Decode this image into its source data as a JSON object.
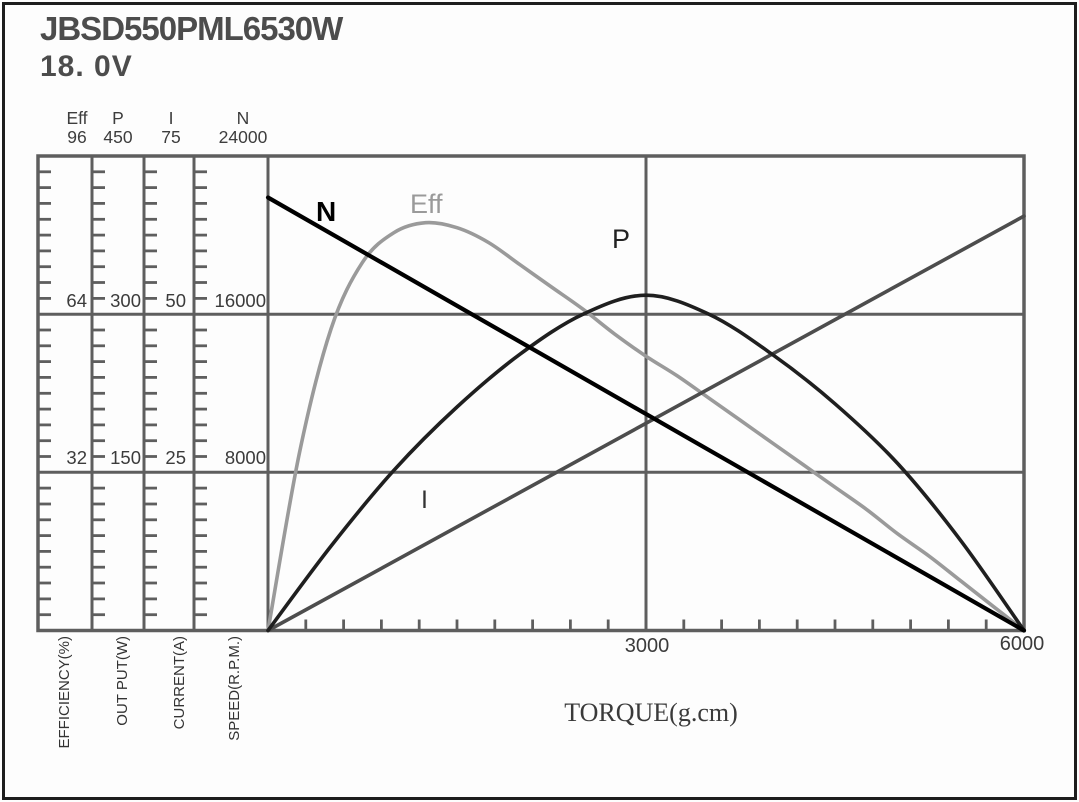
{
  "title": "JBSD550PML6530W",
  "voltage": "18. 0V",
  "scales": [
    {
      "symbol": "Eff",
      "max_label": "96",
      "mid_label": "64",
      "low_label": "32",
      "unit": "EFFICIENCY(%)"
    },
    {
      "symbol": "P",
      "max_label": "450",
      "mid_label": "300",
      "low_label": "150",
      "unit": "OUT PUT(W)"
    },
    {
      "symbol": "I",
      "max_label": "75",
      "mid_label": "50",
      "low_label": "25",
      "unit": "CURRENT(A)"
    },
    {
      "symbol": "N",
      "max_label": "24000",
      "mid_label": "16000",
      "low_label": "8000",
      "unit": "SPEED(R.P.M.)"
    }
  ],
  "x_axis": {
    "label": "TORQUE(g.cm)",
    "mid_tick": "3000",
    "end_tick": "6000"
  },
  "curve_labels": {
    "n": "N",
    "eff": "Eff",
    "p": "P",
    "i": "I"
  },
  "colors": {
    "grid": "#5e5e5e",
    "n_curve": "#000000",
    "eff_curve": "#9a9a9a",
    "p_curve": "#1f1f1f",
    "i_curve": "#4d4d4d"
  },
  "chart_data": {
    "type": "line",
    "title": "JBSD550PML6530W",
    "subtitle": "18.0V",
    "xlabel": "TORQUE(g.cm)",
    "xlim": [
      0,
      6000
    ],
    "x_gridline": 3000,
    "x_minor_tick_step": 300,
    "grid": true,
    "y_axes": [
      {
        "id": "eff",
        "label": "EFFICIENCY(%)",
        "lim": [
          0,
          96
        ],
        "major_ticks": [
          32,
          64,
          96
        ],
        "minor_per_major": 10
      },
      {
        "id": "p",
        "label": "OUT PUT(W)",
        "lim": [
          0,
          450
        ],
        "major_ticks": [
          150,
          300,
          450
        ],
        "minor_per_major": 10
      },
      {
        "id": "i",
        "label": "CURRENT(A)",
        "lim": [
          0,
          75
        ],
        "major_ticks": [
          25,
          50,
          75
        ],
        "minor_per_major": 10
      },
      {
        "id": "n",
        "label": "SPEED(R.P.M.)",
        "lim": [
          0,
          24000
        ],
        "major_ticks": [
          8000,
          16000,
          24000
        ],
        "minor_per_major": 10
      }
    ],
    "series": [
      {
        "name": "N",
        "axis": "n",
        "color": "#000000",
        "stroke_width": 4.2,
        "points": [
          [
            0,
            21900
          ],
          [
            6000,
            0
          ]
        ]
      },
      {
        "name": "I",
        "axis": "i",
        "color": "#4d4d4d",
        "stroke_width": 3.6,
        "points": [
          [
            0,
            0
          ],
          [
            6000,
            65.5
          ]
        ]
      },
      {
        "name": "P",
        "axis": "p",
        "color": "#1f1f1f",
        "stroke_width": 3.6,
        "points": [
          [
            0,
            0
          ],
          [
            500,
            80
          ],
          [
            1000,
            152
          ],
          [
            1500,
            212
          ],
          [
            2000,
            262
          ],
          [
            2500,
            300
          ],
          [
            3000,
            318
          ],
          [
            3500,
            300
          ],
          [
            4000,
            262
          ],
          [
            4500,
            215
          ],
          [
            5000,
            158
          ],
          [
            5500,
            85
          ],
          [
            6000,
            0
          ]
        ]
      },
      {
        "name": "Eff",
        "axis": "eff",
        "color": "#9a9a9a",
        "stroke_width": 3.6,
        "points": [
          [
            0,
            0
          ],
          [
            250,
            36
          ],
          [
            500,
            61
          ],
          [
            750,
            74.5
          ],
          [
            1000,
            80.5
          ],
          [
            1250,
            82.5
          ],
          [
            1500,
            81.5
          ],
          [
            1750,
            78.5
          ],
          [
            2000,
            74
          ],
          [
            2250,
            69.5
          ],
          [
            2500,
            65
          ],
          [
            2750,
            60
          ],
          [
            3000,
            55.5
          ],
          [
            3250,
            51.5
          ],
          [
            3500,
            47
          ],
          [
            3750,
            42.5
          ],
          [
            4000,
            38
          ],
          [
            4250,
            33.5
          ],
          [
            4500,
            29
          ],
          [
            4750,
            24.5
          ],
          [
            5000,
            19.5
          ],
          [
            5250,
            15
          ],
          [
            5500,
            10
          ],
          [
            5750,
            5
          ],
          [
            6000,
            0
          ]
        ]
      }
    ]
  }
}
